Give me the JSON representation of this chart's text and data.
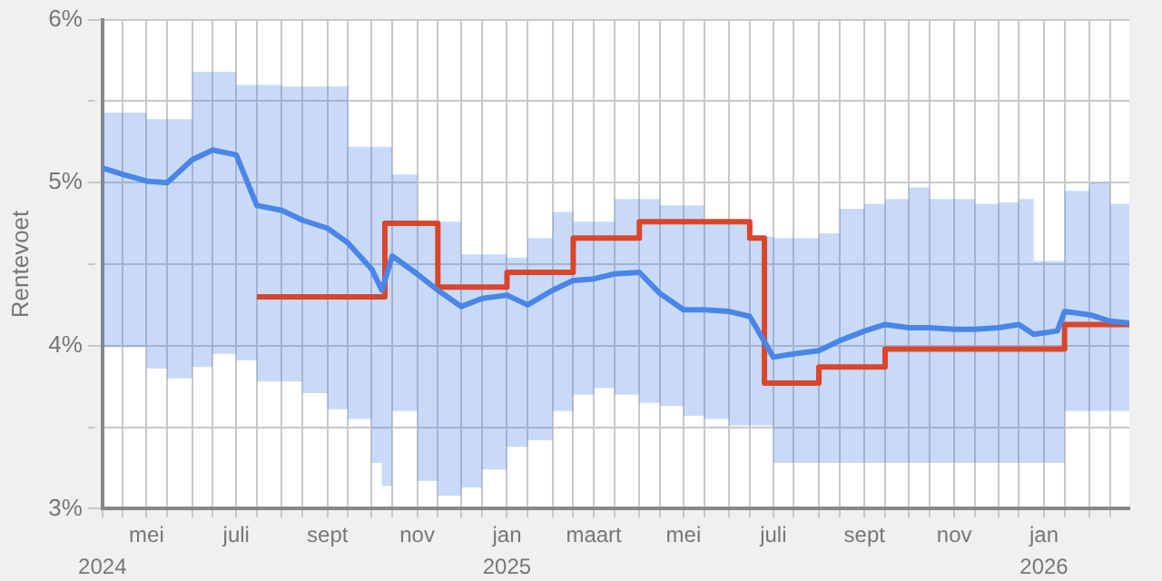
{
  "chart_data": {
    "type": "line",
    "ylabel": "Rentevoet",
    "grid": true,
    "legend": false,
    "xlim": [
      "2024-04-01",
      "2026-02-28"
    ],
    "x2lim": [
      "2024-04-01",
      "2026-02-28"
    ],
    "x2ticks": [
      {
        "value": "2024-04-01",
        "label": "2024"
      },
      {
        "value": "2025-01-01",
        "label": "2025"
      },
      {
        "value": "2026-01-01",
        "label": "2026"
      }
    ],
    "xticks": [
      {
        "value": "2024-04-01",
        "label": null
      },
      {
        "value": "2024-04-15",
        "label": null
      },
      {
        "value": "2024-05-01",
        "label": "mei"
      },
      {
        "value": "2024-05-15",
        "label": null
      },
      {
        "value": "2024-06-01",
        "label": null
      },
      {
        "value": "2024-06-15",
        "label": null
      },
      {
        "value": "2024-07-01",
        "label": "juli"
      },
      {
        "value": "2024-07-15",
        "label": null
      },
      {
        "value": "2024-08-01",
        "label": null
      },
      {
        "value": "2024-08-15",
        "label": null
      },
      {
        "value": "2024-09-01",
        "label": "sept"
      },
      {
        "value": "2024-09-15",
        "label": null
      },
      {
        "value": "2024-10-01",
        "label": null
      },
      {
        "value": "2024-10-15",
        "label": null
      },
      {
        "value": "2024-11-01",
        "label": "nov"
      },
      {
        "value": "2024-11-15",
        "label": null
      },
      {
        "value": "2024-12-01",
        "label": null
      },
      {
        "value": "2024-12-15",
        "label": null
      },
      {
        "value": "2025-01-01",
        "label": "jan"
      },
      {
        "value": "2025-01-15",
        "label": null
      },
      {
        "value": "2025-02-01",
        "label": null
      },
      {
        "value": "2025-02-15",
        "label": null
      },
      {
        "value": "2025-03-01",
        "label": "maart"
      },
      {
        "value": "2025-03-15",
        "label": null
      },
      {
        "value": "2025-04-01",
        "label": null
      },
      {
        "value": "2025-04-15",
        "label": null
      },
      {
        "value": "2025-05-01",
        "label": "mei"
      },
      {
        "value": "2025-05-15",
        "label": null
      },
      {
        "value": "2025-06-01",
        "label": null
      },
      {
        "value": "2025-06-15",
        "label": null
      },
      {
        "value": "2025-07-01",
        "label": "juli"
      },
      {
        "value": "2025-07-15",
        "label": null
      },
      {
        "value": "2025-08-01",
        "label": null
      },
      {
        "value": "2025-08-15",
        "label": null
      },
      {
        "value": "2025-09-01",
        "label": "sept"
      },
      {
        "value": "2025-09-15",
        "label": null
      },
      {
        "value": "2025-10-01",
        "label": null
      },
      {
        "value": "2025-10-15",
        "label": null
      },
      {
        "value": "2025-11-01",
        "label": "nov"
      },
      {
        "value": "2025-11-15",
        "label": null
      },
      {
        "value": "2025-12-01",
        "label": null
      },
      {
        "value": "2025-12-15",
        "label": null
      },
      {
        "value": "2026-01-01",
        "label": "jan"
      },
      {
        "value": "2026-01-15",
        "label": null
      },
      {
        "value": "2026-02-01",
        "label": null
      },
      {
        "value": "2026-02-15",
        "label": null
      }
    ],
    "ylim": [
      3,
      6
    ],
    "yticks": [
      {
        "value": 3,
        "label": "3%"
      },
      {
        "value": 3.5,
        "label": null
      },
      {
        "value": 4,
        "label": "4%"
      },
      {
        "value": 4.5,
        "label": null
      },
      {
        "value": 5,
        "label": "5%"
      },
      {
        "value": 5.5,
        "label": null
      },
      {
        "value": 6,
        "label": "6%"
      }
    ],
    "series": [
      {
        "color": "#4a86e8",
        "x": [
          "2024-04-01",
          "2024-04-15",
          "2024-05-01",
          "2024-05-15",
          "2024-06-01",
          "2024-06-15",
          "2024-07-01",
          "2024-07-15",
          "2024-08-01",
          "2024-08-15",
          "2024-09-01",
          "2024-09-15",
          "2024-10-01",
          "2024-10-08",
          "2024-10-15",
          "2024-11-01",
          "2024-11-15",
          "2024-12-01",
          "2024-12-15",
          "2025-01-01",
          "2025-01-15",
          "2025-02-01",
          "2025-02-15",
          "2025-03-01",
          "2025-03-15",
          "2025-04-01",
          "2025-04-15",
          "2025-05-01",
          "2025-05-15",
          "2025-06-01",
          "2025-06-15",
          "2025-07-01",
          "2025-07-15",
          "2025-08-01",
          "2025-08-15",
          "2025-09-01",
          "2025-09-15",
          "2025-10-01",
          "2025-10-15",
          "2025-11-01",
          "2025-11-15",
          "2025-12-01",
          "2025-12-15",
          "2025-12-25",
          "2026-01-10",
          "2026-01-15",
          "2026-02-01",
          "2026-02-15",
          "2026-02-28"
        ],
        "values": [
          5.09,
          5.05,
          5.01,
          5.0,
          5.14,
          5.2,
          5.17,
          4.86,
          4.83,
          4.77,
          4.72,
          4.63,
          4.47,
          4.34,
          4.55,
          4.44,
          4.34,
          4.24,
          4.29,
          4.31,
          4.25,
          4.34,
          4.4,
          4.41,
          4.44,
          4.45,
          4.32,
          4.22,
          4.22,
          4.21,
          4.18,
          3.93,
          3.95,
          3.97,
          4.03,
          4.09,
          4.13,
          4.11,
          4.11,
          4.1,
          4.1,
          4.11,
          4.13,
          4.07,
          4.09,
          4.21,
          4.19,
          4.15,
          4.14
        ],
        "lower": [
          3.99,
          3.99,
          3.86,
          3.8,
          3.87,
          3.95,
          3.91,
          3.78,
          3.78,
          3.71,
          3.61,
          3.55,
          3.28,
          3.14,
          3.6,
          3.17,
          3.08,
          3.13,
          3.24,
          3.38,
          3.42,
          3.6,
          3.7,
          3.74,
          3.7,
          3.65,
          3.63,
          3.57,
          3.55,
          3.51,
          3.51,
          3.28,
          3.28,
          3.28,
          3.28,
          3.28,
          3.28,
          3.28,
          3.28,
          3.28,
          3.28,
          3.28,
          3.28,
          3.28,
          3.28,
          3.6,
          3.6,
          3.6,
          3.6
        ],
        "upper": [
          5.43,
          5.43,
          5.39,
          5.39,
          5.68,
          5.68,
          5.6,
          5.6,
          5.59,
          5.59,
          5.59,
          5.22,
          5.22,
          5.22,
          5.05,
          4.76,
          4.76,
          4.56,
          4.56,
          4.54,
          4.66,
          4.82,
          4.76,
          4.76,
          4.9,
          4.9,
          4.86,
          4.86,
          4.76,
          4.76,
          4.67,
          4.66,
          4.66,
          4.69,
          4.84,
          4.87,
          4.9,
          4.97,
          4.9,
          4.9,
          4.87,
          4.88,
          4.9,
          4.52,
          4.52,
          4.95,
          5.0,
          4.87,
          4.75
        ]
      },
      {
        "type": "step",
        "color": "#d9462b",
        "x": [
          "2024-07-15",
          "2024-10-10",
          "2024-11-15",
          "2025-01-01",
          "2025-02-15",
          "2025-04-01",
          "2025-06-15",
          "2025-06-25",
          "2025-08-01",
          "2025-09-15",
          "2026-01-15",
          "2026-02-28"
        ],
        "values": [
          4.3,
          4.75,
          4.36,
          4.45,
          4.66,
          4.76,
          4.66,
          3.77,
          3.87,
          3.98,
          4.13,
          4.13
        ]
      }
    ]
  }
}
